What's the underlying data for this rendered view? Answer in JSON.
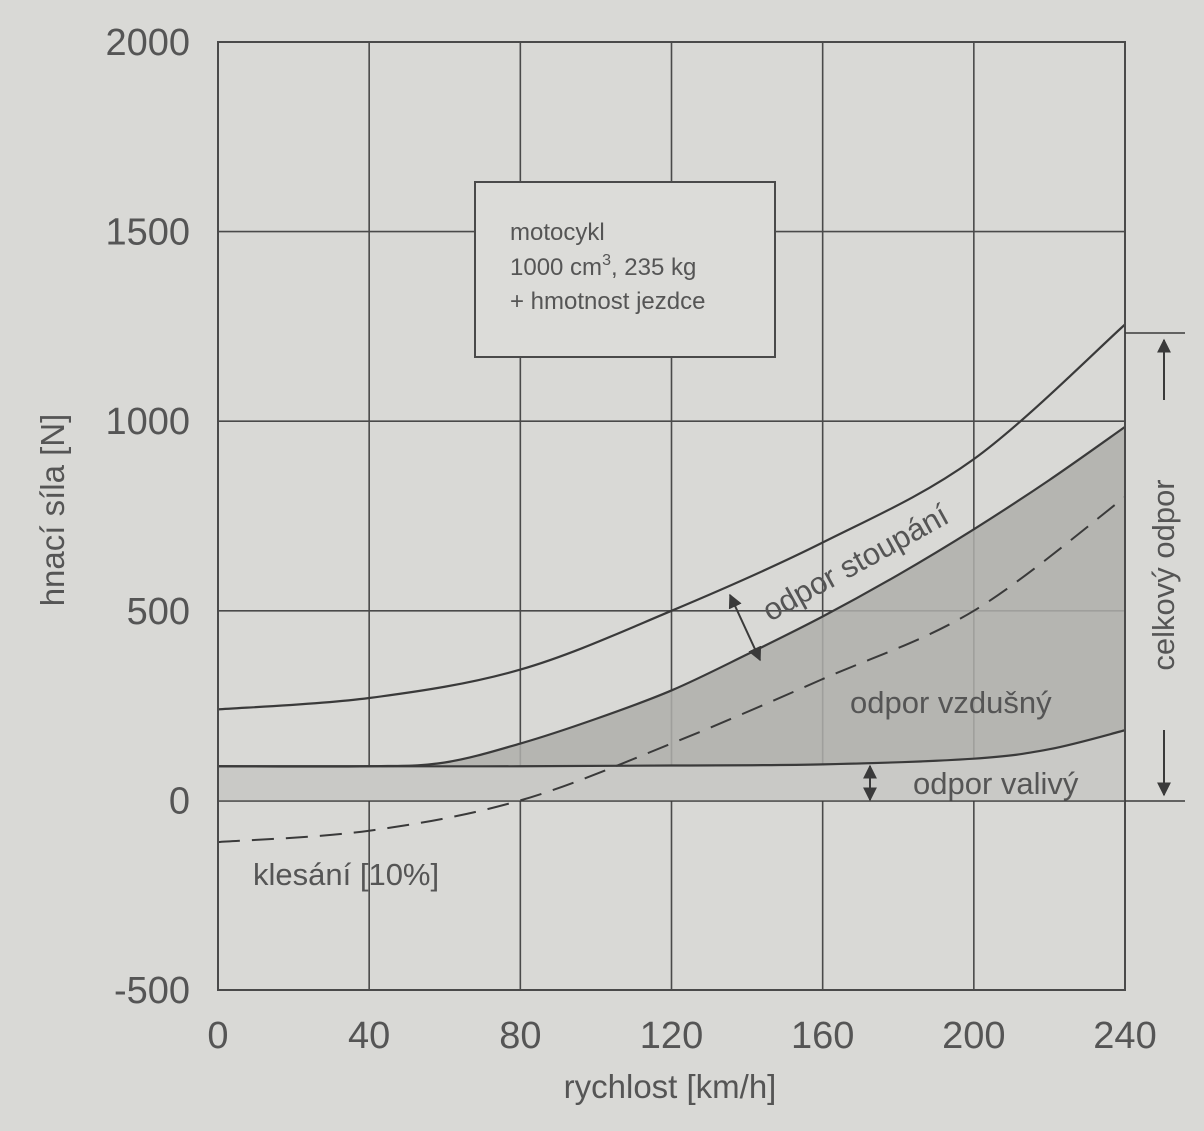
{
  "chart_data": {
    "type": "line",
    "xlabel": "rychlost [km/h]",
    "ylabel": "hnací síla [N]",
    "xlim": [
      0,
      240
    ],
    "ylim": [
      -500,
      2000
    ],
    "x_ticks": [
      "0",
      "40",
      "80",
      "120",
      "160",
      "200",
      "240"
    ],
    "y_ticks": [
      "2000",
      "1500",
      "1000",
      "500",
      "0",
      "-500"
    ],
    "grid": true,
    "series": [
      {
        "name": "odpor valivý",
        "x": [
          0,
          40,
          80,
          120,
          160,
          200,
          220,
          240
        ],
        "y": [
          90,
          90,
          90,
          92,
          95,
          110,
          135,
          185
        ]
      },
      {
        "name": "odpor vzdušný",
        "x": [
          0,
          40,
          60,
          80,
          100,
          120,
          140,
          160,
          180,
          200,
          220,
          240
        ],
        "y": [
          90,
          90,
          100,
          150,
          215,
          290,
          385,
          485,
          595,
          715,
          845,
          985
        ]
      },
      {
        "name": "odpor stoupání",
        "x": [
          0,
          40,
          80,
          120,
          160,
          200,
          240
        ],
        "y": [
          240,
          270,
          345,
          500,
          680,
          900,
          1255
        ]
      },
      {
        "name": "klesání [10%]",
        "x": [
          0,
          40,
          80,
          120,
          160,
          200,
          240
        ],
        "y": [
          -110,
          -80,
          0,
          150,
          320,
          500,
          800
        ]
      }
    ],
    "legend_box": [
      "motocykl",
      "1000 cm",
      "3",
      ", 235 kg",
      "+ hmotnost jezdce"
    ],
    "annotations": [
      "odpor stoupání",
      "odpor vzdušný",
      "odpor valivý",
      "klesání [10%]",
      "celkový odpor"
    ],
    "colors": {
      "background": "#d9d9d6",
      "line": "#3a3a3a",
      "grid": "#4a4a4a",
      "text": "#555555",
      "shade_light": "#c9c9c6",
      "shade_dark": "#aeaeaa"
    }
  }
}
